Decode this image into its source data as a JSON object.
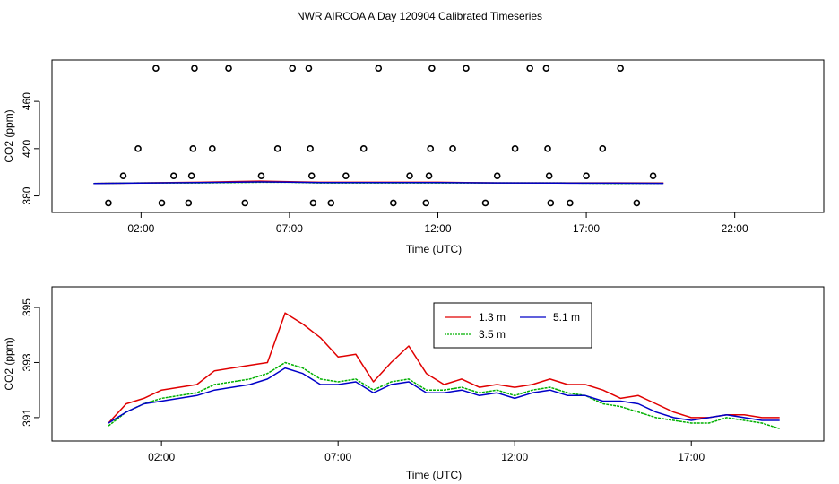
{
  "chart_data": [
    {
      "type": "scatter",
      "title": "NWR AIRCOA A  Day 120904  Calibrated Timeseries",
      "xlabel": "Time (UTC)",
      "ylabel": "CO2 (ppm)",
      "xlim": [
        -1.0,
        25.0
      ],
      "ylim": [
        366,
        495
      ],
      "xticks": [
        {
          "v": 2,
          "label": "02:00"
        },
        {
          "v": 7,
          "label": "07:00"
        },
        {
          "v": 12,
          "label": "12:00"
        },
        {
          "v": 17,
          "label": "17:00"
        },
        {
          "v": 22,
          "label": "22:00"
        }
      ],
      "yticks": [
        {
          "v": 380,
          "label": "380"
        },
        {
          "v": 420,
          "label": "420"
        },
        {
          "v": 460,
          "label": "460"
        }
      ],
      "points": [
        {
          "x": 0.9,
          "y": 374
        },
        {
          "x": 1.4,
          "y": 397
        },
        {
          "x": 1.9,
          "y": 420
        },
        {
          "x": 2.5,
          "y": 488
        },
        {
          "x": 2.7,
          "y": 374
        },
        {
          "x": 3.1,
          "y": 397
        },
        {
          "x": 3.6,
          "y": 374
        },
        {
          "x": 3.7,
          "y": 397
        },
        {
          "x": 3.75,
          "y": 420
        },
        {
          "x": 3.8,
          "y": 488
        },
        {
          "x": 4.4,
          "y": 420
        },
        {
          "x": 4.95,
          "y": 488
        },
        {
          "x": 5.5,
          "y": 374
        },
        {
          "x": 6.05,
          "y": 397
        },
        {
          "x": 6.6,
          "y": 420
        },
        {
          "x": 7.1,
          "y": 488
        },
        {
          "x": 7.65,
          "y": 488
        },
        {
          "x": 7.7,
          "y": 420
        },
        {
          "x": 7.75,
          "y": 397
        },
        {
          "x": 7.8,
          "y": 374
        },
        {
          "x": 8.4,
          "y": 374
        },
        {
          "x": 8.9,
          "y": 397
        },
        {
          "x": 9.5,
          "y": 420
        },
        {
          "x": 10.0,
          "y": 488
        },
        {
          "x": 10.5,
          "y": 374
        },
        {
          "x": 11.05,
          "y": 397
        },
        {
          "x": 11.6,
          "y": 374
        },
        {
          "x": 11.7,
          "y": 397
        },
        {
          "x": 11.75,
          "y": 420
        },
        {
          "x": 11.8,
          "y": 488
        },
        {
          "x": 12.5,
          "y": 420
        },
        {
          "x": 12.95,
          "y": 488
        },
        {
          "x": 13.6,
          "y": 374
        },
        {
          "x": 14.0,
          "y": 397
        },
        {
          "x": 14.6,
          "y": 420
        },
        {
          "x": 15.1,
          "y": 488
        },
        {
          "x": 15.65,
          "y": 488
        },
        {
          "x": 15.7,
          "y": 420
        },
        {
          "x": 15.75,
          "y": 397
        },
        {
          "x": 15.8,
          "y": 374
        },
        {
          "x": 16.45,
          "y": 374
        },
        {
          "x": 17.0,
          "y": 397
        },
        {
          "x": 17.55,
          "y": 420
        },
        {
          "x": 18.15,
          "y": 488
        },
        {
          "x": 18.7,
          "y": 374
        },
        {
          "x": 19.25,
          "y": 397
        }
      ],
      "series": [
        {
          "name": "1.3 m",
          "color": "#e00000",
          "x": [
            0.4,
            2,
            4,
            6,
            7,
            8,
            10,
            12,
            14,
            16,
            18,
            19.6
          ],
          "y": [
            390.5,
            391,
            391.5,
            392.5,
            392,
            391.5,
            391.5,
            391.5,
            391,
            391,
            391,
            390.8
          ]
        },
        {
          "name": "3.5 m",
          "color": "#00b000",
          "x": [
            0.4,
            2,
            4,
            6,
            7,
            8,
            10,
            12,
            14,
            16,
            18,
            19.6
          ],
          "y": [
            390.5,
            391,
            391,
            391.5,
            391.5,
            391,
            391,
            391,
            391,
            391,
            390.5,
            390.6
          ]
        },
        {
          "name": "5.1 m",
          "color": "#0000c8",
          "x": [
            0.4,
            2,
            4,
            6,
            7,
            8,
            10,
            12,
            14,
            16,
            18,
            19.6
          ],
          "y": [
            390.5,
            390.8,
            391.2,
            391.8,
            391.6,
            391.3,
            391.3,
            391.3,
            391,
            390.8,
            390.7,
            390.6
          ]
        }
      ]
    },
    {
      "type": "line",
      "xlabel": "Time (UTC)",
      "ylabel": "CO2 (ppm)",
      "xlim": [
        -1.1,
        20.75
      ],
      "ylim": [
        390.15,
        395.75
      ],
      "xticks": [
        {
          "v": 2,
          "label": "02:00"
        },
        {
          "v": 7,
          "label": "07:00"
        },
        {
          "v": 12,
          "label": "12:00"
        },
        {
          "v": 17,
          "label": "17:00"
        }
      ],
      "yticks": [
        {
          "v": 391,
          "label": "391"
        },
        {
          "v": 393,
          "label": "393"
        },
        {
          "v": 395,
          "label": "395"
        }
      ],
      "x": [
        0.5,
        1,
        1.5,
        2,
        2.5,
        3,
        3.5,
        4,
        4.5,
        5,
        5.5,
        6,
        6.5,
        7,
        7.5,
        8,
        8.5,
        9,
        9.5,
        10,
        10.5,
        11,
        11.5,
        12,
        12.5,
        13,
        13.5,
        14,
        14.5,
        15,
        15.5,
        16,
        16.5,
        17,
        17.5,
        18,
        18.5,
        19,
        19.5
      ],
      "series": [
        {
          "name": "1.3 m",
          "color": "#e00000",
          "values": [
            390.8,
            391.5,
            391.7,
            392.0,
            392.1,
            392.2,
            392.7,
            392.8,
            392.9,
            393.0,
            394.8,
            394.4,
            393.9,
            393.2,
            393.3,
            392.3,
            393.0,
            393.6,
            392.6,
            392.2,
            392.4,
            392.1,
            392.2,
            392.1,
            392.2,
            392.4,
            392.2,
            392.2,
            392.0,
            391.7,
            391.8,
            391.5,
            391.2,
            391.0,
            391.0,
            391.1,
            391.1,
            391.0,
            391.0
          ]
        },
        {
          "name": "3.5 m",
          "color": "#00b000",
          "values": [
            390.7,
            391.2,
            391.5,
            391.7,
            391.8,
            391.9,
            392.2,
            392.3,
            392.4,
            392.6,
            393.0,
            392.8,
            392.4,
            392.3,
            392.4,
            392.0,
            392.3,
            392.4,
            392.0,
            392.0,
            392.1,
            391.9,
            392.0,
            391.8,
            392.0,
            392.1,
            391.9,
            391.8,
            391.5,
            391.4,
            391.2,
            391.0,
            390.9,
            390.8,
            390.8,
            391.0,
            390.9,
            390.8,
            390.6
          ]
        },
        {
          "name": "5.1 m",
          "color": "#0000c8",
          "values": [
            390.8,
            391.2,
            391.5,
            391.6,
            391.7,
            391.8,
            392.0,
            392.1,
            392.2,
            392.4,
            392.8,
            392.6,
            392.2,
            392.2,
            392.3,
            391.9,
            392.2,
            392.3,
            391.9,
            391.9,
            392.0,
            391.8,
            391.9,
            391.7,
            391.9,
            392.0,
            391.8,
            391.8,
            391.6,
            391.6,
            391.5,
            391.2,
            391.0,
            390.9,
            391.0,
            391.1,
            391.0,
            390.9,
            390.9
          ]
        }
      ],
      "legend": {
        "position": "top-center",
        "entries": [
          "1.3 m",
          "5.1 m",
          "3.5 m"
        ]
      }
    }
  ]
}
